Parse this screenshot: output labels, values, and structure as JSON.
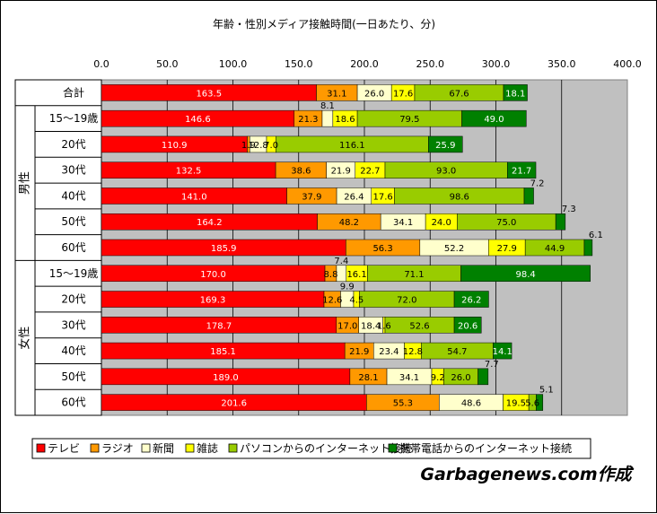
{
  "credit": "Garbagenews.com作成",
  "chart_data": {
    "type": "bar",
    "orientation": "horizontal",
    "stacked": true,
    "title": "年齢・性別メディア接触時間(一日あたり、分)",
    "xlim": [
      0,
      400
    ],
    "xticks": [
      "0.0",
      "50.0",
      "100.0",
      "150.0",
      "200.0",
      "250.0",
      "300.0",
      "350.0",
      "400.0"
    ],
    "grid": true,
    "legend_position": "bottom",
    "groups": [
      {
        "label": "男性",
        "rows": [
          1,
          6
        ]
      },
      {
        "label": "女性",
        "rows": [
          7,
          12
        ]
      }
    ],
    "categories": [
      "合計",
      "15～19歳",
      "20代",
      "30代",
      "40代",
      "50代",
      "60代",
      "15～19歳",
      "20代",
      "30代",
      "40代",
      "50代",
      "60代"
    ],
    "series": [
      {
        "name": "テレビ",
        "color": "#ff0000",
        "values": [
          163.5,
          146.6,
          110.9,
          132.5,
          141.0,
          164.2,
          185.9,
          170.0,
          169.3,
          178.7,
          185.1,
          189.0,
          201.6
        ]
      },
      {
        "name": "ラジオ",
        "color": "#ff9900",
        "values": [
          31.1,
          21.3,
          1.9,
          38.6,
          37.9,
          48.2,
          56.3,
          8.8,
          12.6,
          17.0,
          21.9,
          28.1,
          55.3
        ]
      },
      {
        "name": "新聞",
        "color": "#ffffcc",
        "values": [
          26.0,
          8.1,
          12.8,
          21.9,
          26.4,
          34.1,
          52.2,
          7.4,
          9.9,
          18.4,
          23.4,
          34.1,
          48.6
        ]
      },
      {
        "name": "雑誌",
        "color": "#ffff00",
        "values": [
          17.6,
          18.6,
          7.0,
          22.7,
          17.6,
          24.0,
          27.9,
          16.1,
          4.5,
          1.6,
          12.8,
          9.2,
          19.5
        ]
      },
      {
        "name": "パソコンからのインターネット接続",
        "color": "#99cc00",
        "values": [
          67.6,
          79.5,
          116.1,
          93.0,
          98.6,
          75.0,
          44.9,
          71.1,
          72.0,
          52.6,
          54.7,
          26.0,
          5.6
        ]
      },
      {
        "name": "携帯電話からのインターネット接続",
        "color": "#008000",
        "values": [
          18.1,
          49.0,
          25.9,
          21.7,
          7.2,
          7.3,
          6.1,
          98.4,
          26.2,
          20.6,
          14.1,
          7.7,
          5.1
        ]
      }
    ],
    "value_labels": [
      [
        "163.5",
        "31.1",
        "26.0",
        "17.6",
        "67.6",
        "18.1"
      ],
      [
        "146.6",
        "21.3",
        "8.1",
        "18.6",
        "79.5",
        "49.0"
      ],
      [
        "110.9",
        "1.9",
        "12.8",
        "7.0",
        "116.1",
        "25.9"
      ],
      [
        "132.5",
        "38.6",
        "21.9",
        "22.7",
        "93.0",
        "21.7"
      ],
      [
        "141.0",
        "37.9",
        "26.4",
        "17.6",
        "98.6",
        "7.2"
      ],
      [
        "164.2",
        "48.2",
        "34.1",
        "24.0",
        "75.0",
        "7.3"
      ],
      [
        "185.9",
        "56.3",
        "52.2",
        "27.9",
        "44.9",
        "6.1"
      ],
      [
        "170.0",
        "8.8",
        "7.4",
        "16.1",
        "71.1",
        "98.4"
      ],
      [
        "169.3",
        "12.6",
        "9.9",
        "4.5",
        "72.0",
        "26.2"
      ],
      [
        "178.7",
        "17.0",
        "18.4",
        "1.6",
        "52.6",
        "20.6"
      ],
      [
        "185.1",
        "21.9",
        "23.4",
        "12.8",
        "54.7",
        "14.1"
      ],
      [
        "189.0",
        "28.1",
        "34.1",
        "9.2",
        "26.0",
        "7.7"
      ],
      [
        "201.6",
        "55.3",
        "48.6",
        "19.5",
        "5.6",
        "5.1"
      ]
    ]
  }
}
